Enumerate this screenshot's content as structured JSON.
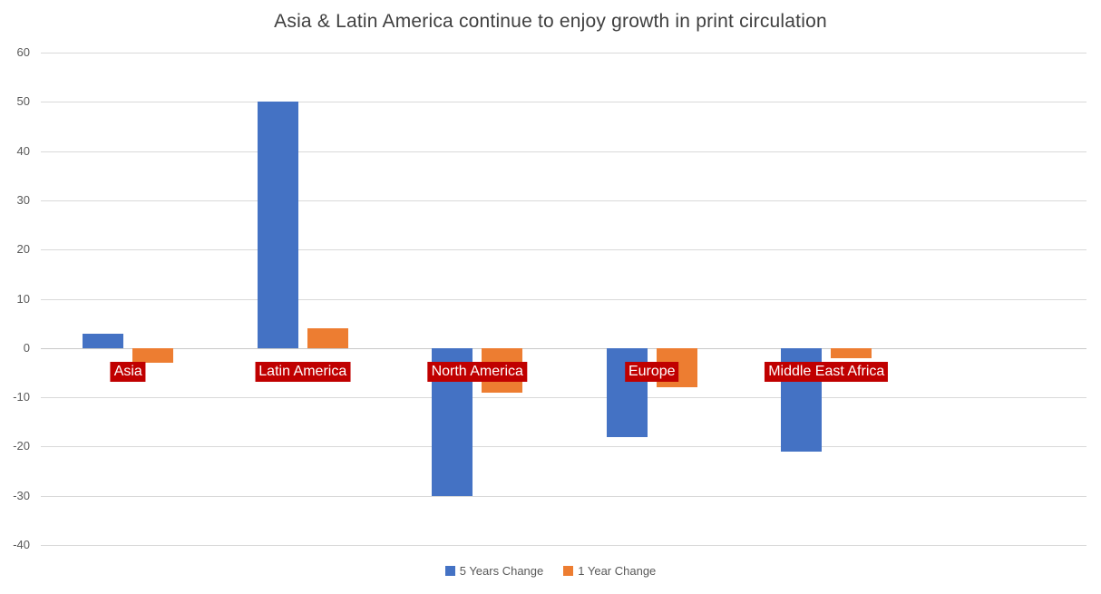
{
  "chart_data": {
    "type": "bar",
    "title": "Asia & Latin America continue to enjoy growth in print circulation",
    "categories": [
      "Asia",
      "Latin America",
      "North America",
      "Europe",
      "Middle East Africa"
    ],
    "series": [
      {
        "name": "5 Years Change",
        "color": "#4472C4",
        "values": [
          3,
          50,
          -30,
          -18,
          -21
        ]
      },
      {
        "name": "1 Year Change",
        "color": "#ED7D31",
        "values": [
          -3,
          4,
          -9,
          -8,
          -2
        ]
      }
    ],
    "xlabel": "",
    "ylabel": "",
    "ylim": [
      -40,
      60
    ],
    "yticks": [
      60,
      50,
      40,
      30,
      20,
      10,
      0,
      -10,
      -20,
      -30,
      -40
    ],
    "grid": true,
    "legend_position": "bottom",
    "category_label_colors": {
      "background": "#C00000",
      "text": "#FFFFFF"
    },
    "colors": {
      "title_text": "#404040",
      "axis_text": "#595959",
      "gridline": "#D9D9D9",
      "background": "#FFFFFF"
    }
  }
}
